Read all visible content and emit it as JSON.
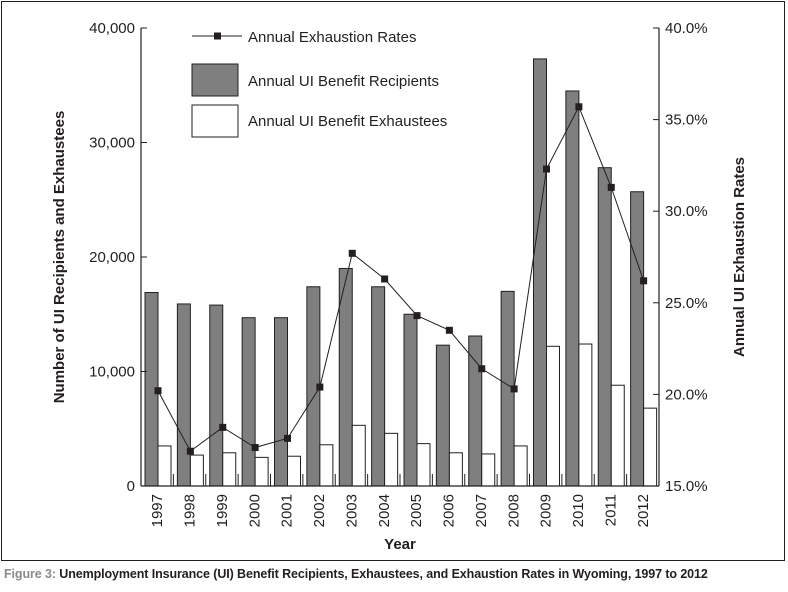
{
  "chart_data": {
    "type": "bar",
    "categories": [
      "1997",
      "1998",
      "1999",
      "2000",
      "2001",
      "2002",
      "2003",
      "2004",
      "2005",
      "2006",
      "2007",
      "2008",
      "2009",
      "2010",
      "2011",
      "2012"
    ],
    "series": [
      {
        "name": "Annual UI Benefit Recipients",
        "type": "bar",
        "axis": "left",
        "values": [
          16900,
          15900,
          15800,
          14700,
          14700,
          17400,
          19000,
          17400,
          15000,
          12300,
          13100,
          17000,
          37300,
          34500,
          27800,
          25700
        ]
      },
      {
        "name": "Annual UI Benefit Exhaustees",
        "type": "bar",
        "axis": "left",
        "values": [
          3500,
          2700,
          2900,
          2500,
          2600,
          3600,
          5300,
          4600,
          3700,
          2900,
          2800,
          3500,
          12200,
          12400,
          8800,
          6800
        ]
      },
      {
        "name": "Annual Exhaustion Rates",
        "type": "line",
        "axis": "right",
        "values": [
          20.2,
          16.9,
          18.2,
          17.1,
          17.6,
          20.4,
          27.7,
          26.3,
          24.3,
          23.5,
          21.4,
          20.3,
          32.3,
          35.7,
          31.3,
          26.2
        ]
      }
    ],
    "xlabel": "Year",
    "ylabel": "Number of UI Recipients and Exhaustees",
    "y2label": "Annual UI Exhaustion Rates",
    "ylim": [
      0,
      40000
    ],
    "y2lim": [
      15,
      40
    ],
    "yticks": [
      "0",
      "10,000",
      "20,000",
      "30,000",
      "40,000"
    ],
    "y2ticks": [
      "15.0%",
      "20.0%",
      "25.0%",
      "30.0%",
      "35.0%",
      "40.0%"
    ],
    "legend": "top-left",
    "grid": false,
    "colors": {
      "recipients": "#7f7f7f",
      "exhaustees": "#ffffff",
      "line": "#231f20"
    }
  },
  "caption": {
    "label": "Figure 3:",
    "text": "Unemployment Insurance (UI) Benefit Recipients, Exhaustees, and Exhaustion Rates in Wyoming, 1997 to 2012"
  }
}
